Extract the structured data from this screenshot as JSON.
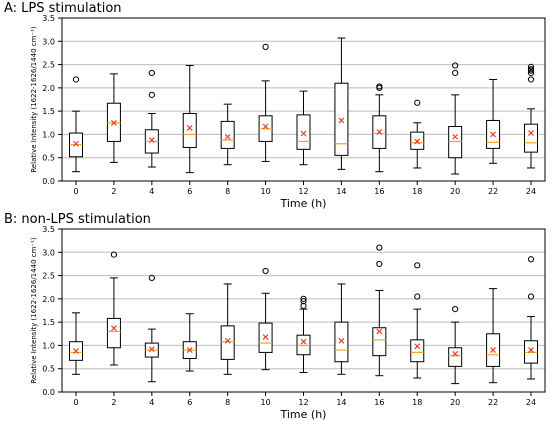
{
  "chart_data": [
    {
      "type": "boxplot",
      "title": "A: LPS stimulation",
      "xlabel": "Time (h)",
      "ylabel": "Relative Intensity (1622-1626/1440 cm⁻¹)",
      "ylim": [
        0,
        3.5
      ],
      "yticks": [
        "0.0",
        "0.5",
        "1.0",
        "1.5",
        "2.0",
        "2.5",
        "3.0",
        "3.5"
      ],
      "grid": "horizontal",
      "colors": {
        "box": "#000000",
        "median": "#f5a623",
        "mean": "#e8402a",
        "grid": "#bdbdbd"
      },
      "categories": [
        "0",
        "2",
        "4",
        "6",
        "8",
        "10",
        "12",
        "14",
        "16",
        "18",
        "20",
        "22",
        "24"
      ],
      "boxes": [
        {
          "whislo": 0.2,
          "q1": 0.52,
          "med": 0.78,
          "q3": 1.03,
          "whishi": 1.5,
          "mean": 0.8,
          "fliers": [
            2.18
          ]
        },
        {
          "whislo": 0.4,
          "q1": 0.85,
          "med": 1.25,
          "q3": 1.67,
          "whishi": 2.3,
          "mean": 1.25,
          "fliers": []
        },
        {
          "whislo": 0.3,
          "q1": 0.6,
          "med": 0.85,
          "q3": 1.1,
          "whishi": 1.45,
          "mean": 0.88,
          "fliers": [
            1.85,
            2.32
          ]
        },
        {
          "whislo": 0.18,
          "q1": 0.72,
          "med": 1.0,
          "q3": 1.45,
          "whishi": 2.48,
          "mean": 1.14,
          "fliers": []
        },
        {
          "whislo": 0.35,
          "q1": 0.7,
          "med": 0.88,
          "q3": 1.28,
          "whishi": 1.65,
          "mean": 0.95,
          "fliers": []
        },
        {
          "whislo": 0.42,
          "q1": 0.85,
          "med": 1.12,
          "q3": 1.4,
          "whishi": 2.15,
          "mean": 1.17,
          "fliers": [
            2.88
          ]
        },
        {
          "whislo": 0.35,
          "q1": 0.68,
          "med": 0.85,
          "q3": 1.42,
          "whishi": 1.93,
          "mean": 1.02,
          "fliers": []
        },
        {
          "whislo": 0.25,
          "q1": 0.55,
          "med": 0.8,
          "q3": 2.1,
          "whishi": 3.07,
          "mean": 1.3,
          "fliers": []
        },
        {
          "whislo": 0.2,
          "q1": 0.7,
          "med": 1.02,
          "q3": 1.4,
          "whishi": 1.85,
          "mean": 1.05,
          "fliers": [
            2.0,
            2.03
          ]
        },
        {
          "whislo": 0.28,
          "q1": 0.68,
          "med": 0.82,
          "q3": 1.05,
          "whishi": 1.25,
          "mean": 0.85,
          "fliers": [
            1.68
          ]
        },
        {
          "whislo": 0.15,
          "q1": 0.5,
          "med": 0.85,
          "q3": 1.17,
          "whishi": 1.85,
          "mean": 0.95,
          "fliers": [
            2.32,
            2.48
          ]
        },
        {
          "whislo": 0.38,
          "q1": 0.7,
          "med": 0.83,
          "q3": 1.3,
          "whishi": 2.18,
          "mean": 1.0,
          "fliers": []
        },
        {
          "whislo": 0.28,
          "q1": 0.62,
          "med": 0.82,
          "q3": 1.22,
          "whishi": 1.55,
          "mean": 1.03,
          "fliers": [
            2.18,
            2.32,
            2.37,
            2.4,
            2.45
          ]
        }
      ]
    },
    {
      "type": "boxplot",
      "title": "B: non-LPS stimulation",
      "xlabel": "Time (h)",
      "ylabel": "Relative Intensity (1622-1626/1440 cm⁻¹)",
      "ylim": [
        0,
        3.5
      ],
      "yticks": [
        "0.0",
        "0.5",
        "1.0",
        "1.5",
        "2.0",
        "2.5",
        "3.0",
        "3.5"
      ],
      "grid": "horizontal",
      "colors": {
        "box": "#000000",
        "median": "#f5a623",
        "mean": "#e8402a",
        "grid": "#bdbdbd"
      },
      "categories": [
        "0",
        "2",
        "4",
        "6",
        "8",
        "10",
        "12",
        "14",
        "16",
        "18",
        "20",
        "22",
        "24"
      ],
      "boxes": [
        {
          "whislo": 0.38,
          "q1": 0.68,
          "med": 0.85,
          "q3": 1.08,
          "whishi": 1.7,
          "mean": 0.88,
          "fliers": []
        },
        {
          "whislo": 0.58,
          "q1": 0.95,
          "med": 1.3,
          "q3": 1.58,
          "whishi": 2.45,
          "mean": 1.37,
          "fliers": [
            2.95
          ]
        },
        {
          "whislo": 0.22,
          "q1": 0.75,
          "med": 0.9,
          "q3": 1.05,
          "whishi": 1.35,
          "mean": 0.92,
          "fliers": [
            2.45
          ]
        },
        {
          "whislo": 0.45,
          "q1": 0.72,
          "med": 0.9,
          "q3": 1.08,
          "whishi": 1.68,
          "mean": 0.9,
          "fliers": []
        },
        {
          "whislo": 0.38,
          "q1": 0.7,
          "med": 1.08,
          "q3": 1.42,
          "whishi": 2.32,
          "mean": 1.1,
          "fliers": []
        },
        {
          "whislo": 0.48,
          "q1": 0.85,
          "med": 1.05,
          "q3": 1.48,
          "whishi": 2.12,
          "mean": 1.18,
          "fliers": [
            2.6
          ]
        },
        {
          "whislo": 0.42,
          "q1": 0.8,
          "med": 1.0,
          "q3": 1.22,
          "whishi": 1.78,
          "mean": 1.08,
          "fliers": [
            1.85,
            1.95,
            2.0
          ]
        },
        {
          "whislo": 0.38,
          "q1": 0.65,
          "med": 0.9,
          "q3": 1.5,
          "whishi": 2.32,
          "mean": 1.1,
          "fliers": []
        },
        {
          "whislo": 0.35,
          "q1": 0.78,
          "med": 1.12,
          "q3": 1.38,
          "whishi": 2.18,
          "mean": 1.3,
          "fliers": [
            2.75,
            3.1
          ]
        },
        {
          "whislo": 0.3,
          "q1": 0.65,
          "med": 0.85,
          "q3": 1.12,
          "whishi": 1.78,
          "mean": 0.98,
          "fliers": [
            2.05,
            2.72
          ]
        },
        {
          "whislo": 0.18,
          "q1": 0.55,
          "med": 0.78,
          "q3": 0.95,
          "whishi": 1.5,
          "mean": 0.82,
          "fliers": [
            1.78
          ]
        },
        {
          "whislo": 0.2,
          "q1": 0.55,
          "med": 0.8,
          "q3": 1.25,
          "whishi": 2.22,
          "mean": 0.9,
          "fliers": []
        },
        {
          "whislo": 0.28,
          "q1": 0.62,
          "med": 0.85,
          "q3": 1.1,
          "whishi": 1.62,
          "mean": 0.9,
          "fliers": [
            2.05,
            2.85
          ]
        }
      ]
    }
  ]
}
